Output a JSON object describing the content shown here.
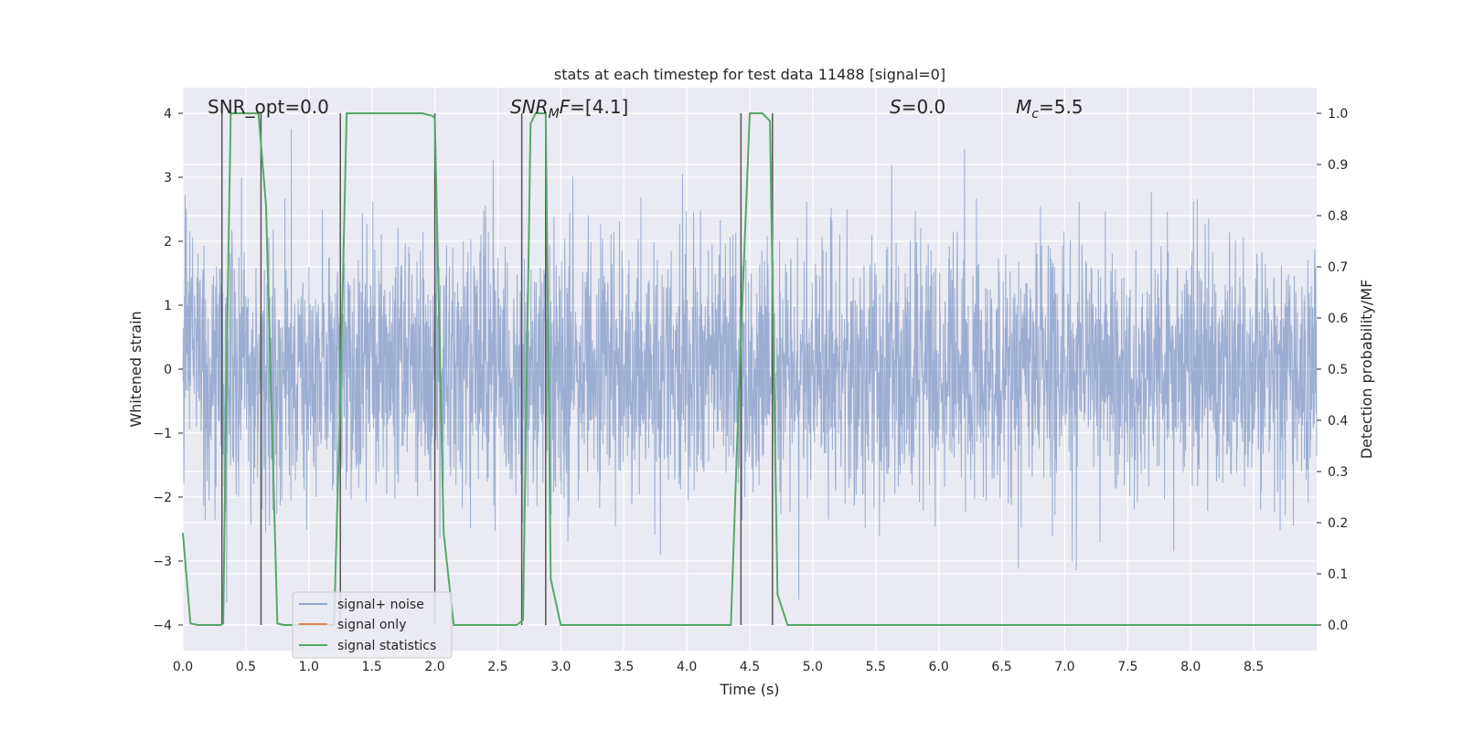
{
  "chart_data": {
    "type": "line",
    "title": "stats at each timestep for test data 11488 [signal=0]",
    "xlabel": "Time (s)",
    "ylabel": "Whitened strain",
    "y2label": "Detection probability/MF",
    "xlim": [
      0,
      9.0
    ],
    "ylim": [
      -4.4,
      4.4
    ],
    "y2lim": [
      -0.05,
      1.05
    ],
    "xticks": [
      "0.0",
      "0.5",
      "1.0",
      "1.5",
      "2.0",
      "2.5",
      "3.0",
      "3.5",
      "4.0",
      "4.5",
      "5.0",
      "5.5",
      "6.0",
      "6.5",
      "7.0",
      "7.5",
      "8.0",
      "8.5"
    ],
    "yticks": [
      "4",
      "3",
      "2",
      "1",
      "0",
      "−1",
      "−2",
      "−3",
      "−4"
    ],
    "y2ticks": [
      "1.0",
      "0.9",
      "0.8",
      "0.7",
      "0.6",
      "0.5",
      "0.4",
      "0.3",
      "0.2",
      "0.1",
      "0.0"
    ],
    "grid": true,
    "legend_position": "lower-left",
    "series": [
      {
        "name": "signal+ noise",
        "color": "#4c72b0",
        "description": "whitened noise, amplitude mostly within ±2.5, peaks to about ±4"
      },
      {
        "name": "signal only",
        "color": "#dd8452",
        "values": []
      },
      {
        "name": "signal statistics",
        "color": "#55a868",
        "axis": "right",
        "x": [
          0.0,
          0.06,
          0.12,
          0.3,
          0.32,
          0.35,
          0.38,
          0.55,
          0.6,
          0.66,
          0.75,
          0.8,
          1.2,
          1.25,
          1.3,
          1.5,
          1.7,
          1.9,
          1.98,
          2.0,
          2.07,
          2.15,
          2.6,
          2.65,
          2.7,
          2.76,
          2.8,
          2.88,
          2.92,
          3.0,
          3.5,
          4.0,
          4.35,
          4.42,
          4.5,
          4.6,
          4.66,
          4.72,
          4.8,
          5.0,
          6.0,
          7.0,
          8.0,
          9.0
        ],
        "y": [
          0.18,
          0.003,
          0.0,
          0.0,
          0.003,
          0.55,
          1.0,
          1.0,
          1.0,
          0.82,
          0.003,
          0.0,
          0.0,
          0.45,
          1.0,
          1.0,
          1.0,
          1.0,
          0.995,
          0.99,
          0.18,
          0.0,
          0.0,
          0.0,
          0.01,
          0.98,
          1.0,
          1.0,
          0.09,
          0.0,
          0.0,
          0.0,
          0.0,
          0.5,
          1.0,
          1.0,
          0.985,
          0.06,
          0.0,
          0.0,
          0.0,
          0.0,
          0.0,
          0.0
        ]
      }
    ],
    "vlines": [
      0.31,
      0.62,
      1.25,
      2.0,
      2.69,
      2.88,
      4.43,
      4.68
    ],
    "annotations": [
      {
        "text": "SNR_opt=0.0"
      },
      {
        "text_italic": "SNR",
        "sub": "M",
        "text_italic2": "F",
        "text": "=[4.1]"
      },
      {
        "text_italic": "S",
        "text": "=0.0"
      },
      {
        "text_italic": "M",
        "sub": "c",
        "text": "=5.5"
      }
    ],
    "colors": {
      "background": "#eaeaf2",
      "grid": "#ffffff",
      "noise": "#4c72b0",
      "signal": "#dd8452",
      "stats": "#55a868",
      "vline": "#555555"
    }
  }
}
